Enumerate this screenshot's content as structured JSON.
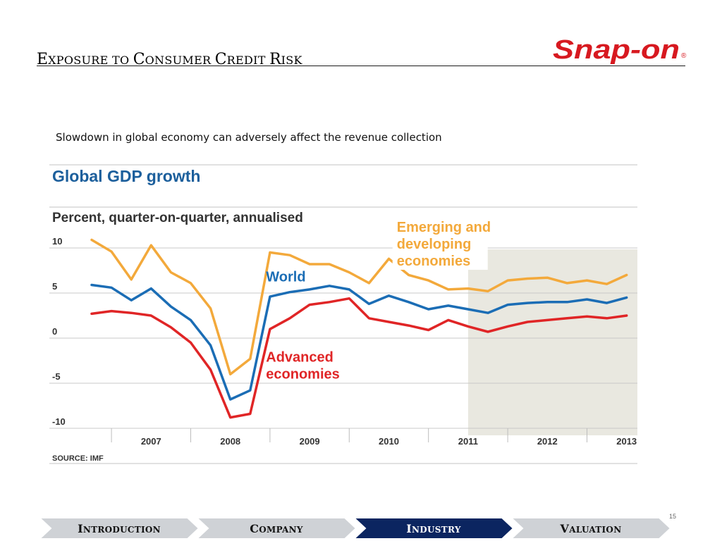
{
  "slide": {
    "title_caps": [
      {
        "cap": "E",
        "rest": "XPOSURE TO "
      },
      {
        "cap": "C",
        "rest": "ONSUMER "
      },
      {
        "cap": "C",
        "rest": "REDIT "
      },
      {
        "cap": "R",
        "rest": "ISK"
      }
    ],
    "logo_text": "Snap-on",
    "logo_mark": "®",
    "subtitle": "Slowdown in global economy can adversely affect the revenue collection",
    "page_number": "15"
  },
  "nav": {
    "tabs": [
      {
        "cap": "I",
        "rest": "NTRODUCTION",
        "active": false
      },
      {
        "cap": "C",
        "rest": "OMPANY",
        "active": false
      },
      {
        "cap": "I",
        "rest": "NDUSTRY",
        "active": true
      },
      {
        "cap": "V",
        "rest": "ALUATION",
        "active": false
      }
    ]
  },
  "colors": {
    "brand_red": "#d71920",
    "nav_active": "#0b2560",
    "nav_inactive": "#cfd2d6",
    "title_blue": "#1c5f9c",
    "forecast_shade": "#e9e8e0",
    "emerging": "#f3a93b",
    "world": "#1b6db5",
    "advanced": "#e02526"
  },
  "chart_data": {
    "type": "line",
    "title": "Global GDP growth",
    "subtitle": "Percent, quarter-on-quarter, annualised",
    "source": "SOURCE: IMF",
    "ylim": [
      -10,
      10
    ],
    "yticks": [
      10,
      5,
      0,
      -5,
      -10
    ],
    "ytick_labels": [
      "10",
      "5",
      "0",
      "-5",
      "-10"
    ],
    "x_year_labels": [
      "2007",
      "2008",
      "2009",
      "2010",
      "2011",
      "2012",
      "2013"
    ],
    "x_start_year": 2006.75,
    "x_step_year": 0.25,
    "forecast_from_year": 2011.5,
    "series": [
      {
        "name": "Emerging and developing economies",
        "name_lines": [
          "Emerging and",
          "developing",
          "economies"
        ],
        "color": "#f3a93b",
        "values": [
          10.9,
          9.6,
          6.5,
          10.3,
          7.3,
          6.1,
          3.3,
          -4.0,
          -2.3,
          9.5,
          9.2,
          8.2,
          8.2,
          7.3,
          6.1,
          8.8,
          7.0,
          6.4,
          5.4,
          5.5,
          5.2,
          6.4,
          6.6,
          6.7,
          6.1,
          6.4,
          6.0,
          7.0
        ]
      },
      {
        "name": "World",
        "name_lines": [
          "World"
        ],
        "color": "#1b6db5",
        "values": [
          5.9,
          5.6,
          4.2,
          5.5,
          3.5,
          2.0,
          -0.8,
          -6.8,
          -5.8,
          4.6,
          5.1,
          5.4,
          5.8,
          5.4,
          3.8,
          4.7,
          4.0,
          3.2,
          3.6,
          3.2,
          2.8,
          3.7,
          3.9,
          4.0,
          4.0,
          4.3,
          3.9,
          4.5
        ]
      },
      {
        "name": "Advanced economies",
        "name_lines": [
          "Advanced",
          "economies"
        ],
        "color": "#e02526",
        "values": [
          2.7,
          3.0,
          2.8,
          2.5,
          1.2,
          -0.5,
          -3.5,
          -8.8,
          -8.4,
          1.0,
          2.2,
          3.7,
          4.0,
          4.4,
          2.2,
          1.8,
          1.4,
          0.9,
          2.0,
          1.3,
          0.7,
          1.3,
          1.8,
          2.0,
          2.2,
          2.4,
          2.2,
          2.5
        ]
      }
    ]
  }
}
